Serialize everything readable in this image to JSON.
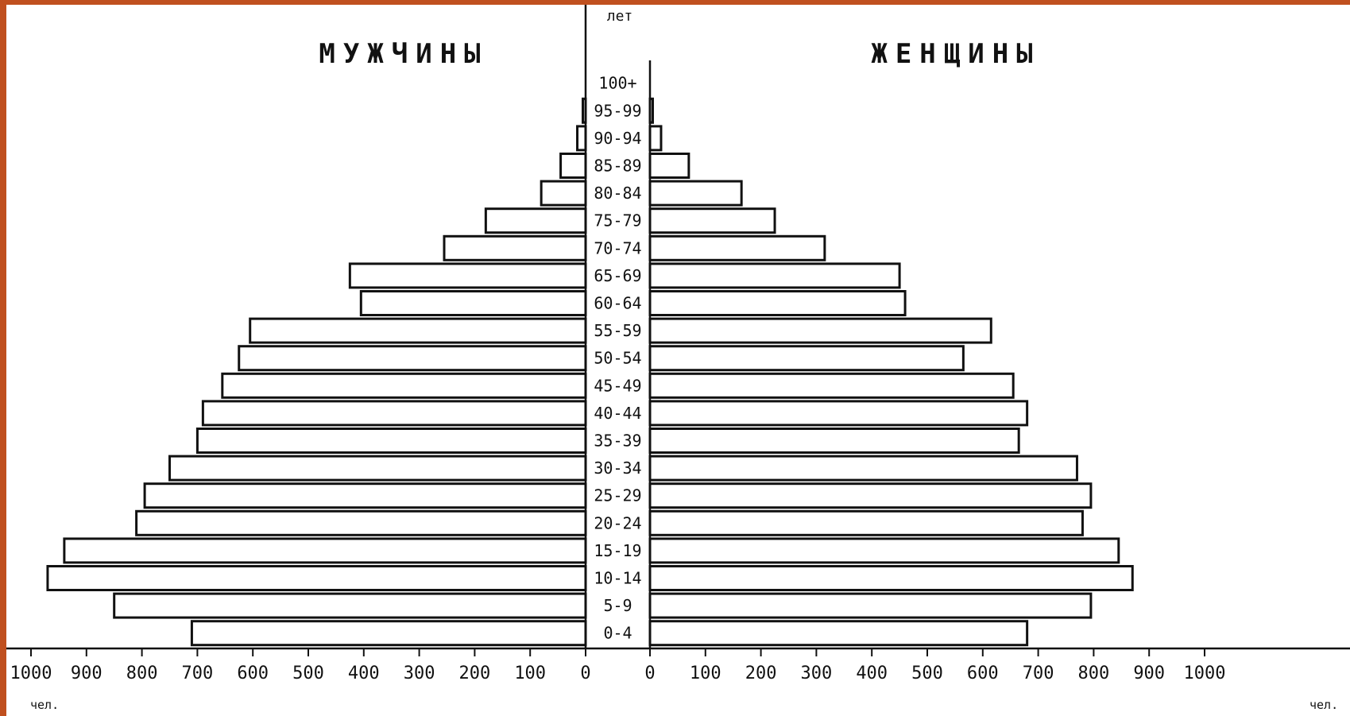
{
  "chart_data": {
    "type": "bar",
    "orientation": "horizontal-population-pyramid",
    "left_title": "МУЖЧИНЫ",
    "right_title": "ЖЕНЩИНЫ",
    "age_axis_title": "лет",
    "unit_left": "чел.",
    "unit_right": "чел.",
    "categories": [
      "0-4",
      "5-9",
      "10-14",
      "15-19",
      "20-24",
      "25-29",
      "30-34",
      "35-39",
      "40-44",
      "45-49",
      "50-54",
      "55-59",
      "60-64",
      "65-69",
      "70-74",
      "75-79",
      "80-84",
      "85-89",
      "90-94",
      "95-99",
      "100+"
    ],
    "series": [
      {
        "name": "МУЖЧИНЫ",
        "side": "left",
        "values": [
          710,
          850,
          970,
          940,
          810,
          795,
          750,
          700,
          690,
          655,
          625,
          605,
          405,
          425,
          255,
          180,
          80,
          45,
          15,
          5,
          0
        ]
      },
      {
        "name": "ЖЕНЩИНЫ",
        "side": "right",
        "values": [
          680,
          795,
          870,
          845,
          780,
          795,
          770,
          665,
          680,
          655,
          565,
          615,
          460,
          450,
          315,
          225,
          165,
          70,
          20,
          5,
          0
        ]
      }
    ],
    "xlim": [
      0,
      1000
    ],
    "xticks": [
      "1000",
      "900",
      "800",
      "700",
      "600",
      "500",
      "400",
      "300",
      "200",
      "100",
      "0"
    ],
    "xticks_right": [
      "0",
      "100",
      "200",
      "300",
      "400",
      "500",
      "600",
      "700",
      "800",
      "900",
      "1000"
    ],
    "grid": false
  }
}
